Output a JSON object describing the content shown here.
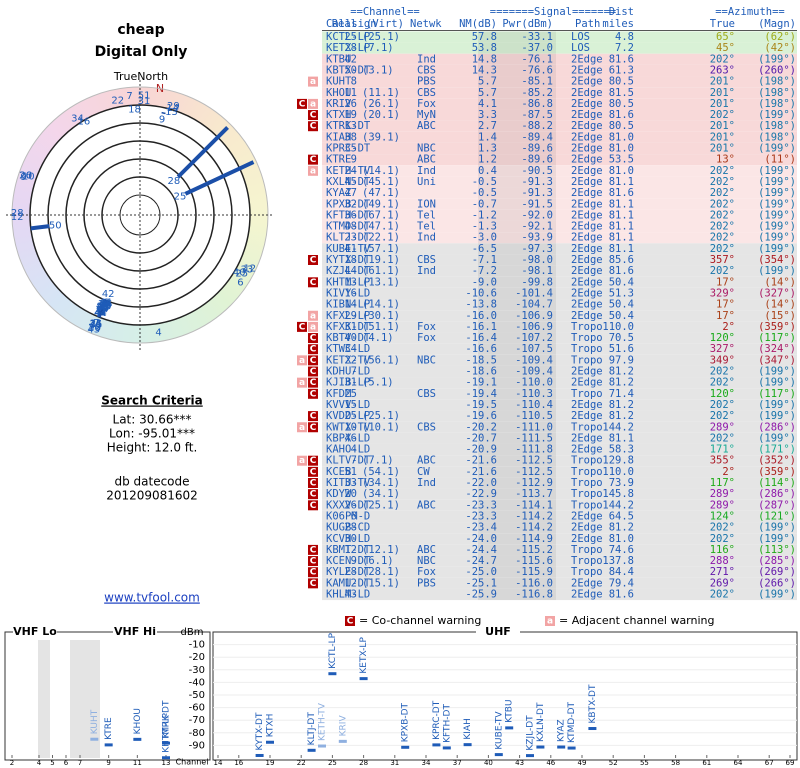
{
  "header": {
    "title": "cheap",
    "subtitle": "Digital Only"
  },
  "polar": {
    "label": "TrueNorth",
    "north": "N"
  },
  "criteria": {
    "title": "Search Criteria",
    "lines": [
      "Lat: 30.66***",
      "Lon: -95.01***",
      "Height: 12.0 ft."
    ],
    "db_label": "db datecode",
    "db_code": "201209081602"
  },
  "link": "www.tvfool.com",
  "table": {
    "groups": [
      "==Channel==",
      "=======Signal=======",
      "Dist",
      "==Azimuth=="
    ],
    "columns": [
      "Callsign",
      "Real",
      "(Virt)",
      "Netwk",
      "NM(dB)",
      "Pwr(dBm)",
      "Path",
      "miles",
      "True",
      "(Magn)"
    ],
    "rows": [
      {
        "call": "KCTL-LP",
        "real": "25",
        "virt": "(25.1)",
        "nm": "57.8",
        "pwr": "-33.1",
        "path": "LOS",
        "dist": "4.8",
        "az": "65°",
        "mag": "(62°)"
      },
      {
        "call": "KETX-LP",
        "real": "28",
        "virt": "(7.1)",
        "nm": "53.8",
        "pwr": "-37.0",
        "path": "LOS",
        "dist": "7.2",
        "az": "45°",
        "mag": "(42°)"
      },
      {
        "call": "KTBU",
        "real": "42",
        "net": "Ind",
        "nm": "14.8",
        "pwr": "-76.1",
        "path": "2Edge",
        "dist": "81.6",
        "az": "202°",
        "mag": "(199°)"
      },
      {
        "call": "KBTX-DT",
        "real": "50",
        "virt": "(3.1)",
        "net": "CBS",
        "nm": "14.3",
        "pwr": "-76.6",
        "path": "2Edge",
        "dist": "61.3",
        "az": "263°",
        "mag": "(260°)"
      },
      {
        "warn": [
          "a"
        ],
        "call": "KUHT",
        "real": "8",
        "net": "PBS",
        "nm": "5.7",
        "pwr": "-85.1",
        "path": "2Edge",
        "dist": "80.5",
        "az": "201°",
        "mag": "(198°)"
      },
      {
        "call": "KHOU",
        "real": "11",
        "virt": "(11.1)",
        "net": "CBS",
        "nm": "5.7",
        "pwr": "-85.2",
        "path": "2Edge",
        "dist": "81.5",
        "az": "201°",
        "mag": "(198°)"
      },
      {
        "warn": [
          "C",
          "a"
        ],
        "call": "KRIV",
        "real": "26",
        "virt": "(26.1)",
        "net": "Fox",
        "nm": "4.1",
        "pwr": "-86.8",
        "path": "2Edge",
        "dist": "80.5",
        "az": "201°",
        "mag": "(198°)"
      },
      {
        "warn": [
          "C"
        ],
        "call": "KTXH",
        "real": "19",
        "virt": "(20.1)",
        "net": "MyN",
        "nm": "3.3",
        "pwr": "-87.5",
        "path": "2Edge",
        "dist": "81.6",
        "az": "202°",
        "mag": "(199°)"
      },
      {
        "warn": [
          "C"
        ],
        "call": "KTRK-DT",
        "real": "13",
        "net": "ABC",
        "nm": "2.7",
        "pwr": "-88.2",
        "path": "2Edge",
        "dist": "80.5",
        "az": "201°",
        "mag": "(198°)"
      },
      {
        "call": "KIAH",
        "real": "38",
        "virt": "(39.1)",
        "nm": "1.4",
        "pwr": "-89.4",
        "path": "2Edge",
        "dist": "81.0",
        "az": "201°",
        "mag": "(198°)"
      },
      {
        "call": "KPRC-DT",
        "real": "35",
        "net": "NBC",
        "nm": "1.3",
        "pwr": "-89.6",
        "path": "2Edge",
        "dist": "81.0",
        "az": "201°",
        "mag": "(199°)"
      },
      {
        "warn": [
          "C"
        ],
        "call": "KTRE",
        "real": "9",
        "net": "ABC",
        "nm": "1.2",
        "pwr": "-89.6",
        "path": "2Edge",
        "dist": "53.5",
        "az": "13°",
        "mag": "(11°)"
      },
      {
        "warn": [
          "a"
        ],
        "call": "KETH-TV",
        "real": "24",
        "virt": "(14.1)",
        "net": "Ind",
        "nm": "0.4",
        "pwr": "-90.5",
        "path": "2Edge",
        "dist": "81.0",
        "az": "202°",
        "mag": "(199°)"
      },
      {
        "call": "KXLN-DT",
        "real": "45",
        "virt": "(45.1)",
        "net": "Uni",
        "nm": "-0.5",
        "pwr": "-91.3",
        "path": "2Edge",
        "dist": "81.1",
        "az": "202°",
        "mag": "(199°)"
      },
      {
        "call": "KYAZ",
        "real": "47",
        "virt": "(47.1)",
        "nm": "-0.5",
        "pwr": "-91.3",
        "path": "2Edge",
        "dist": "81.6",
        "az": "202°",
        "mag": "(199°)"
      },
      {
        "call": "KPXB-DT",
        "real": "32",
        "virt": "(49.1)",
        "net": "ION",
        "nm": "-0.7",
        "pwr": "-91.5",
        "path": "2Edge",
        "dist": "81.1",
        "az": "202°",
        "mag": "(199°)"
      },
      {
        "call": "KFTH-DT",
        "real": "36",
        "virt": "(67.1)",
        "net": "Tel",
        "nm": "-1.2",
        "pwr": "-92.0",
        "path": "2Edge",
        "dist": "81.1",
        "az": "202°",
        "mag": "(199°)"
      },
      {
        "call": "KTMD-DT",
        "real": "48",
        "virt": "(47.1)",
        "net": "Tel",
        "nm": "-1.3",
        "pwr": "-92.1",
        "path": "2Edge",
        "dist": "81.1",
        "az": "202°",
        "mag": "(199°)"
      },
      {
        "call": "KLTJ-DT",
        "real": "23",
        "virt": "(22.1)",
        "net": "Ind",
        "nm": "-3.0",
        "pwr": "-93.9",
        "path": "2Edge",
        "dist": "81.1",
        "az": "202°",
        "mag": "(199°)"
      },
      {
        "call": "KUBE-TV",
        "real": "41",
        "virt": "(57.1)",
        "nm": "-6.5",
        "pwr": "-97.3",
        "path": "2Edge",
        "dist": "81.1",
        "az": "202°",
        "mag": "(199°)"
      },
      {
        "warn": [
          "C"
        ],
        "call": "KYTX-DT",
        "real": "18",
        "virt": "(19.1)",
        "net": "CBS",
        "nm": "-7.1",
        "pwr": "-98.0",
        "path": "2Edge",
        "dist": "85.6",
        "az": "357°",
        "mag": "(354°)"
      },
      {
        "call": "KZJL-DT",
        "real": "44",
        "virt": "(61.1)",
        "net": "Ind",
        "nm": "-7.2",
        "pwr": "-98.1",
        "path": "2Edge",
        "dist": "81.6",
        "az": "202°",
        "mag": "(199°)"
      },
      {
        "warn": [
          "C"
        ],
        "call": "KHTM-LP",
        "real": "13",
        "virt": "(13.1)",
        "nm": "-9.0",
        "pwr": "-99.8",
        "path": "2Edge",
        "dist": "50.4",
        "az": "17°",
        "mag": "(14°)"
      },
      {
        "call": "KIVY-LD",
        "real": "16",
        "nm": "-10.6",
        "pwr": "-101.4",
        "path": "2Edge",
        "dist": "51.3",
        "az": "329°",
        "mag": "(327°)"
      },
      {
        "call": "KIBN-LP",
        "real": "14",
        "virt": "(14.1)",
        "nm": "-13.8",
        "pwr": "-104.7",
        "path": "2Edge",
        "dist": "50.4",
        "az": "17°",
        "mag": "(14°)"
      },
      {
        "warn": [
          "a"
        ],
        "call": "KFXL-LP",
        "real": "29",
        "virt": "(30.1)",
        "nm": "-16.0",
        "pwr": "-106.9",
        "path": "2Edge",
        "dist": "50.4",
        "az": "17°",
        "mag": "(15°)"
      },
      {
        "warn": [
          "C",
          "a"
        ],
        "call": "KFXK-DT",
        "real": "31",
        "virt": "(51.1)",
        "net": "Fox",
        "nm": "-16.1",
        "pwr": "-106.9",
        "path": "Tropo",
        "dist": "110.0",
        "az": "2°",
        "mag": "(359°)"
      },
      {
        "warn": [
          "C"
        ],
        "call": "KBTV-DT",
        "real": "40",
        "virt": "(4.1)",
        "net": "Fox",
        "nm": "-16.4",
        "pwr": "-107.2",
        "path": "Tropo",
        "dist": "70.5",
        "az": "120°",
        "mag": "(117°)"
      },
      {
        "warn": [
          "C"
        ],
        "call": "KTWC-LD",
        "real": "34",
        "nm": "-16.6",
        "pwr": "-107.5",
        "path": "Tropo",
        "dist": "51.6",
        "az": "327°",
        "mag": "(324°)"
      },
      {
        "warn": [
          "a",
          "C"
        ],
        "call": "KETX-TV",
        "real": "22",
        "virt": "(56.1)",
        "net": "NBC",
        "nm": "-18.5",
        "pwr": "-109.4",
        "path": "Tropo",
        "dist": "97.9",
        "az": "349°",
        "mag": "(347°)"
      },
      {
        "warn": [
          "C"
        ],
        "call": "KDHU-LD",
        "real": "7",
        "nm": "-18.6",
        "pwr": "-109.4",
        "path": "2Edge",
        "dist": "81.2",
        "az": "202°",
        "mag": "(199°)"
      },
      {
        "warn": [
          "a",
          "C"
        ],
        "call": "KJIB-LP",
        "real": "31",
        "virt": "(5.1)",
        "nm": "-19.1",
        "pwr": "-110.0",
        "path": "2Edge",
        "dist": "81.2",
        "az": "202°",
        "mag": "(199°)"
      },
      {
        "warn": [
          "C"
        ],
        "call": "KFDM",
        "real": "25",
        "net": "CBS",
        "nm": "-19.4",
        "pwr": "-110.3",
        "path": "Tropo",
        "dist": "71.4",
        "az": "120°",
        "mag": "(117°)"
      },
      {
        "call": "KVVV-LD",
        "real": "15",
        "nm": "-19.5",
        "pwr": "-110.4",
        "path": "2Edge",
        "dist": "81.2",
        "az": "202°",
        "mag": "(199°)"
      },
      {
        "warn": [
          "C"
        ],
        "call": "KVDO-LP",
        "real": "25",
        "virt": "(25.1)",
        "nm": "-19.6",
        "pwr": "-110.5",
        "path": "2Edge",
        "dist": "81.2",
        "az": "202°",
        "mag": "(199°)"
      },
      {
        "warn": [
          "a",
          "C"
        ],
        "call": "KWTX-TV",
        "real": "10",
        "virt": "(10.1)",
        "net": "CBS",
        "nm": "-20.2",
        "pwr": "-111.0",
        "path": "Tropo",
        "dist": "144.2",
        "az": "289°",
        "mag": "(286°)"
      },
      {
        "call": "KBPX-LD",
        "real": "46",
        "nm": "-20.7",
        "pwr": "-111.5",
        "path": "2Edge",
        "dist": "81.1",
        "az": "202°",
        "mag": "(199°)"
      },
      {
        "call": "KAHO-LD",
        "real": "4",
        "nm": "-20.9",
        "pwr": "-111.8",
        "path": "2Edge",
        "dist": "58.3",
        "az": "171°",
        "mag": "(171°)"
      },
      {
        "warn": [
          "a",
          "C"
        ],
        "call": "KLTV-DT",
        "real": "7",
        "virt": "(7.1)",
        "net": "ABC",
        "nm": "-21.6",
        "pwr": "-112.5",
        "path": "Tropo",
        "dist": "129.8",
        "az": "355°",
        "mag": "(352°)"
      },
      {
        "warn": [
          "C"
        ],
        "call": "KCEB",
        "real": "51",
        "virt": "(54.1)",
        "net": "CW",
        "nm": "-21.6",
        "pwr": "-112.5",
        "path": "Tropo",
        "dist": "110.0",
        "az": "2°",
        "mag": "(359°)"
      },
      {
        "warn": [
          "C"
        ],
        "call": "KITU-TV",
        "real": "33",
        "virt": "(34.1)",
        "net": "Ind",
        "nm": "-22.0",
        "pwr": "-112.9",
        "path": "Tropo",
        "dist": "73.9",
        "az": "117°",
        "mag": "(114°)"
      },
      {
        "warn": [
          "C"
        ],
        "call": "KDYW",
        "real": "20",
        "virt": "(34.1)",
        "nm": "-22.9",
        "pwr": "-113.7",
        "path": "Tropo",
        "dist": "145.8",
        "az": "289°",
        "mag": "(286°)"
      },
      {
        "warn": [
          "C"
        ],
        "call": "KXXV-DT",
        "real": "26",
        "virt": "(25.1)",
        "net": "ABC",
        "nm": "-23.3",
        "pwr": "-114.1",
        "path": "Tropo",
        "dist": "144.2",
        "az": "289°",
        "mag": "(287°)"
      },
      {
        "call": "K06PM-D",
        "real": "6",
        "nm": "-23.3",
        "pwr": "-114.2",
        "path": "2Edge",
        "dist": "64.5",
        "az": "124°",
        "mag": "(121°)"
      },
      {
        "call": "KUGB-CD",
        "real": "28",
        "nm": "-23.4",
        "pwr": "-114.2",
        "path": "2Edge",
        "dist": "81.2",
        "az": "202°",
        "mag": "(199°)"
      },
      {
        "call": "KCVH-LD",
        "real": "30",
        "nm": "-24.0",
        "pwr": "-114.9",
        "path": "2Edge",
        "dist": "81.0",
        "az": "202°",
        "mag": "(199°)"
      },
      {
        "warn": [
          "C"
        ],
        "call": "KBMT-DT",
        "real": "12",
        "virt": "(12.1)",
        "net": "ABC",
        "nm": "-24.4",
        "pwr": "-115.2",
        "path": "Tropo",
        "dist": "74.6",
        "az": "116°",
        "mag": "(113°)"
      },
      {
        "warn": [
          "C"
        ],
        "call": "KCEN-DT",
        "real": "9",
        "virt": "(6.1)",
        "net": "NBC",
        "nm": "-24.7",
        "pwr": "-115.6",
        "path": "Tropo",
        "dist": "137.8",
        "az": "288°",
        "mag": "(285°)"
      },
      {
        "warn": [
          "C"
        ],
        "call": "KYLE-DT",
        "real": "28",
        "virt": "(28.1)",
        "net": "Fox",
        "nm": "-25.0",
        "pwr": "-115.9",
        "path": "Tropo",
        "dist": "84.4",
        "az": "271°",
        "mag": "(269°)"
      },
      {
        "warn": [
          "C"
        ],
        "call": "KAMU-DT",
        "real": "12",
        "virt": "(15.1)",
        "net": "PBS",
        "nm": "-25.1",
        "pwr": "-116.0",
        "path": "2Edge",
        "dist": "79.4",
        "az": "269°",
        "mag": "(266°)"
      },
      {
        "call": "KHLM-LD",
        "real": "43",
        "nm": "-25.9",
        "pwr": "-116.8",
        "path": "2Edge",
        "dist": "81.6",
        "az": "202°",
        "mag": "(199°)"
      }
    ]
  },
  "legend": [
    {
      "icon": "C",
      "text": "= Co-channel warning"
    },
    {
      "icon": "a",
      "text": "= Adjacent channel warning"
    }
  ],
  "spectrum": {
    "ylabel": "dBm",
    "xlabel": "Channel",
    "ylim": [
      -100,
      0
    ],
    "yticks": [
      -10,
      -20,
      -30,
      -40,
      -50,
      -60,
      -70,
      -80,
      -90
    ],
    "panels": [
      {
        "name": "VHF Lo",
        "xlim": [
          2,
          6
        ],
        "xticks": [
          2,
          4,
          5,
          6
        ]
      },
      {
        "name": "VHF Hi",
        "xlim": [
          7,
          13
        ],
        "xticks": [
          7,
          9,
          11,
          13
        ]
      },
      {
        "name": "UHF",
        "xlim": [
          14,
          69
        ],
        "xticks": [
          14,
          16,
          19,
          22,
          25,
          28,
          31,
          34,
          37,
          40,
          43,
          46,
          49,
          52,
          55,
          58,
          61,
          64,
          67,
          69
        ]
      }
    ]
  }
}
